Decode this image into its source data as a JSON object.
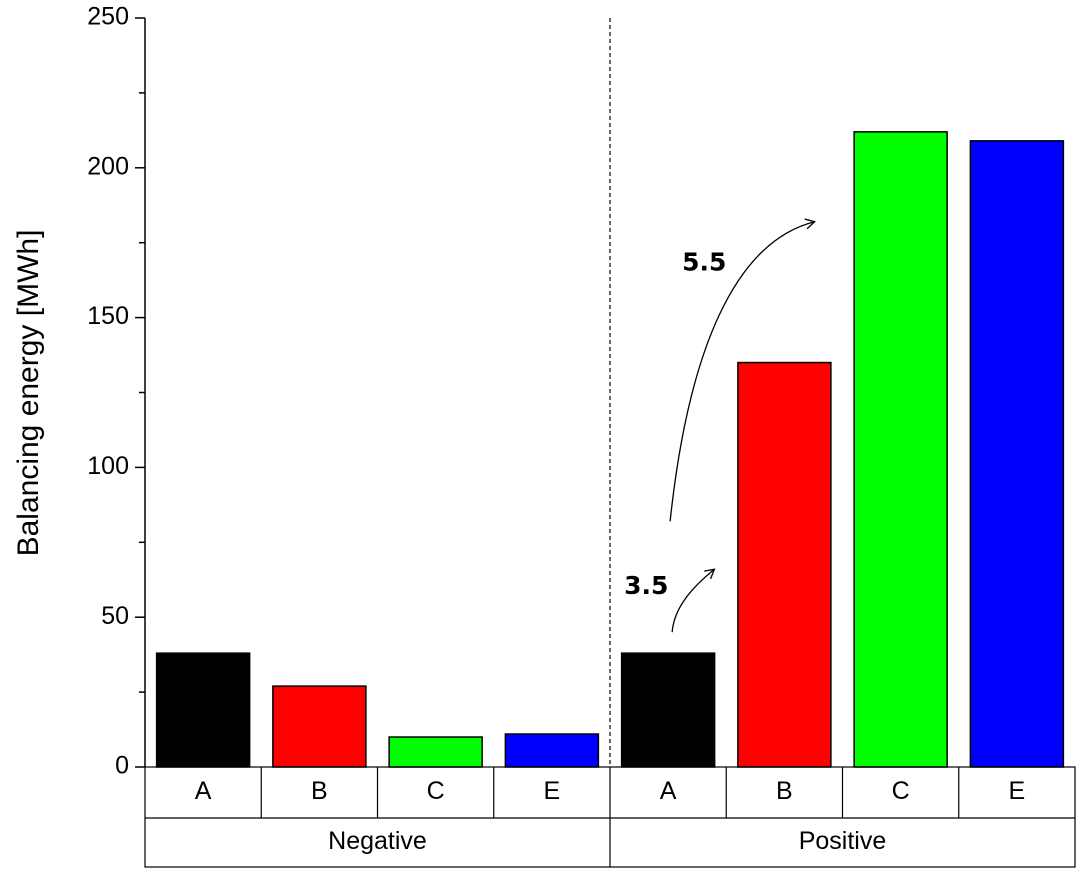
{
  "chart_data": {
    "type": "bar",
    "ylabel": "Balancing energy [MWh]",
    "ylim": [
      0,
      250
    ],
    "yticks": [
      0,
      50,
      100,
      150,
      200,
      250
    ],
    "grid": false,
    "groups": [
      {
        "name": "Negative",
        "categories": [
          "A",
          "B",
          "C",
          "E"
        ],
        "values": [
          38,
          27,
          10,
          11
        ],
        "colors": [
          "#000000",
          "#ff0000",
          "#00ff00",
          "#0000ff"
        ]
      },
      {
        "name": "Positive",
        "categories": [
          "A",
          "B",
          "C",
          "E"
        ],
        "values": [
          38,
          135,
          212,
          209
        ],
        "colors": [
          "#000000",
          "#ff0000",
          "#00ff00",
          "#0000ff"
        ]
      }
    ],
    "annotations": [
      {
        "text": "3.5"
      },
      {
        "text": "5.5"
      }
    ]
  }
}
